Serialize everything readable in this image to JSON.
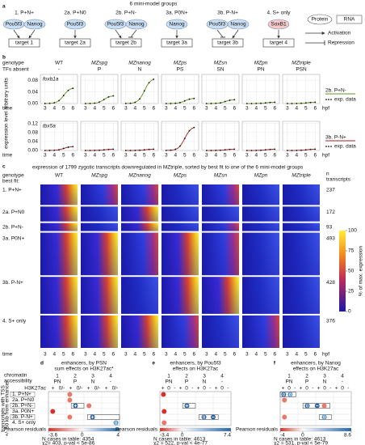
{
  "panel_a": {
    "label": "a",
    "title": "6 mini-model groups",
    "groups": [
      {
        "name": "1. P+N+",
        "proteins": [
          "Pou5f3",
          "Nanog"
        ],
        "target": "target 1"
      },
      {
        "name": "2a. P+N0",
        "proteins": [
          "Pou5f3"
        ],
        "target": "target 2a"
      },
      {
        "name": "2b. P+N-",
        "proteins": [
          "Pou5f3",
          "Nanog"
        ],
        "target": "target 2b"
      },
      {
        "name": "3a. P0N+",
        "proteins": [
          "Nanog"
        ],
        "target": "target 3a"
      },
      {
        "name": "3b. P-N+",
        "proteins": [
          "Pou5f3",
          "Nanog"
        ],
        "target": "target 3b"
      },
      {
        "name": "4. S+ only",
        "proteins": [
          "SoxB1"
        ],
        "target": "target 4"
      }
    ],
    "legend": {
      "protein": "Protein",
      "rna": "RNA",
      "activation": "Activation",
      "repression": "Repression"
    }
  },
  "panel_b": {
    "label": "b",
    "genotype_label": "genotype",
    "tfs_label": "TFs absent",
    "genotypes": [
      "WT",
      "MZspg",
      "MZnanog",
      "MZps",
      "MZsn",
      "MZpn",
      "MZtriple"
    ],
    "tfs_absent": [
      "-",
      "P",
      "N",
      "PS",
      "SN",
      "PN",
      "PSN"
    ],
    "y_label": "expression level arbitrary units",
    "time_label": "time",
    "unit": "hpf",
    "xticks": [
      3,
      4,
      5,
      6
    ],
    "xlim": [
      2.5,
      6.5
    ],
    "exp_data": "exp. data",
    "genes": [
      {
        "name": "foxb1a",
        "fit": "2b. P+N-",
        "ylim": [
          0,
          0.1
        ],
        "yticks": [
          {
            "value": 0,
            "label": "0.00"
          },
          0.04,
          0.08
        ]
      },
      {
        "name": "tbx5a",
        "fit": "3b. P-N+",
        "ylim": [
          0,
          0.13
        ],
        "yticks": [
          {
            "value": 0,
            "label": "0.00"
          },
          0.04,
          0.08,
          0.12
        ]
      }
    ]
  },
  "panel_c": {
    "label": "c",
    "title": "expression of 1799 zygotic transcripts downregulated in MZtriple, sorted  by best fit to one of the 6 mini-model groups",
    "best_fit": "best fit:",
    "n_label": "n",
    "transcripts": "transcripts",
    "n": [
      237,
      172,
      93,
      493,
      428,
      376
    ],
    "colorbar": {
      "lim": [
        0,
        100
      ],
      "ticks": [
        0,
        25,
        50,
        75,
        100
      ],
      "label": "% of max. expression"
    }
  },
  "enrichment": {
    "tss_label": [
      "transcripts with TSS",
      "+/- 50 kb from enhancer"
    ],
    "chromatin_label": [
      "chromatin",
      "accessibility"
    ],
    "h3k27ac_label": "H3K27ac",
    "residuals_label": "Pearson residuals",
    "panels": [
      {
        "label": "d",
        "title": [
          "enhancers, by PSN",
          "sum effects on H3K27ac*"
        ],
        "columns": [
          {
            "num": 1,
            "acc": "PN"
          },
          {
            "num": 2,
            "acc": "P"
          },
          {
            "num": 3,
            "acc": "N"
          },
          {
            "num": 4,
            "acc": "-"
          }
        ],
        "signs": [
          "+",
          "0/-"
        ],
        "colorbar": {
          "lim": [
            -3.6,
            4
          ],
          "ticks": [
            -3.6,
            0,
            4
          ]
        },
        "cases": "N cases in table: 4354",
        "chi2": "χ2= 403, p-val < 5e-86"
      },
      {
        "label": "e",
        "title": [
          "enhancers, by Pou5f3",
          "effects on H3K27ac"
        ],
        "columns": [
          {
            "num": 1,
            "acc": "PN"
          },
          {
            "num": 2,
            "acc": "P"
          },
          {
            "num": 3,
            "acc": "N"
          },
          {
            "num": 4,
            "acc": "-"
          }
        ],
        "signs": [
          "+",
          "0",
          "-"
        ],
        "colorbar": {
          "lim": [
            -3.4,
            7.4
          ],
          "ticks": [
            -3.4,
            0,
            7.4
          ]
        },
        "cases": "N cases in table: 4613",
        "chi2": "χ2 = 522, p-val < 4e-77"
      },
      {
        "label": "f",
        "title": [
          "enhancers, by Nanog",
          "effects on H3K27ac"
        ],
        "columns": [
          {
            "num": 1,
            "acc": "PN"
          },
          {
            "num": 2,
            "acc": "P"
          },
          {
            "num": 3,
            "acc": "N"
          },
          {
            "num": 4,
            "acc": "-"
          }
        ],
        "signs": [
          "+",
          "0",
          "-"
        ],
        "colorbar": {
          "lim": [
            -4,
            8.6
          ],
          "ticks": [
            -4,
            0,
            8.6
          ]
        },
        "cases": "N cases in table: 4613",
        "chi2": "χ2 = 531, p-val < 5e-79"
      }
    ]
  }
}
